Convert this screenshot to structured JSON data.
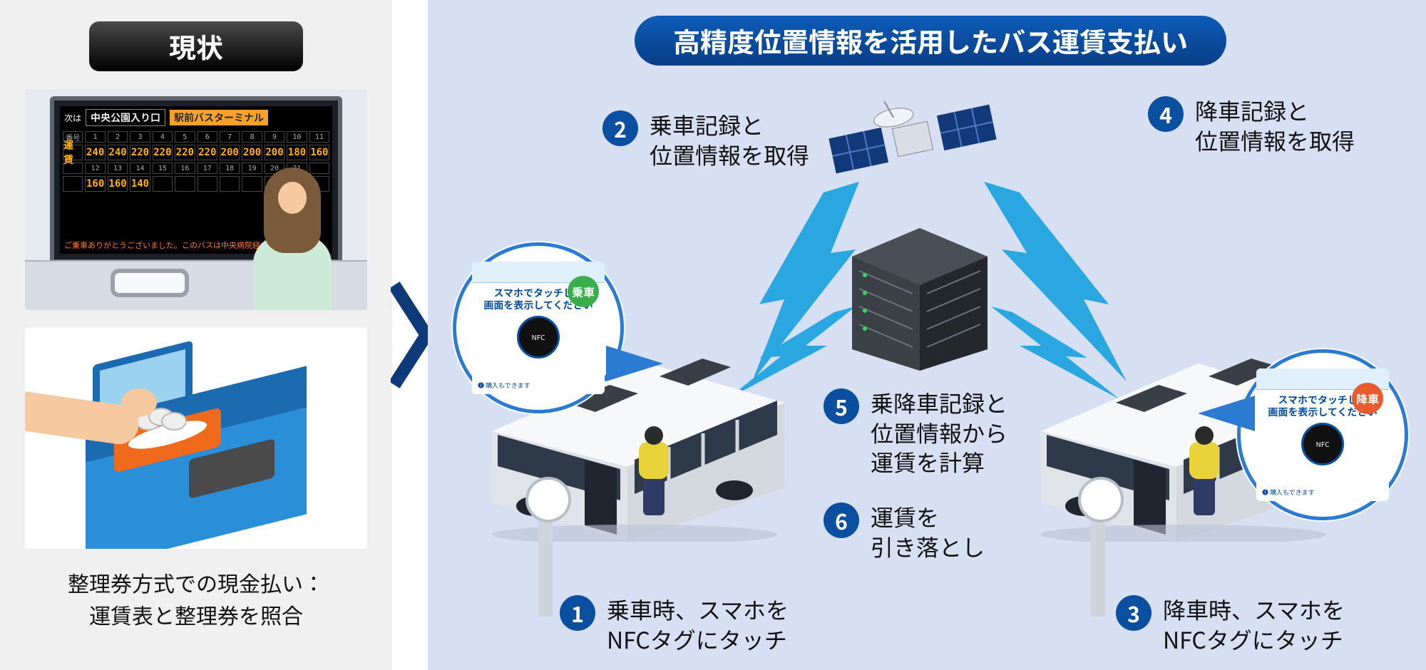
{
  "left": {
    "title": "現状",
    "fareBoard": {
      "nextLabel": "次は",
      "stop1": "中央公園入り口",
      "stop2": "駅前バスターミナル",
      "headerNums1": [
        "番号",
        "1",
        "2",
        "3",
        "4",
        "5",
        "6",
        "7",
        "8",
        "9",
        "10",
        "11"
      ],
      "prices1": [
        "運賃",
        "240",
        "240",
        "220",
        "220",
        "220",
        "220",
        "200",
        "200",
        "200",
        "180",
        "160"
      ],
      "headerNums2": [
        "",
        "12",
        "13",
        "14",
        "15",
        "16",
        "17",
        "18",
        "19",
        "20",
        "21",
        ""
      ],
      "prices2": [
        "",
        "160",
        "160",
        "140",
        "",
        "",
        "",
        "",
        "",
        "",
        "",
        ""
      ],
      "scroll": "ご乗車ありがとうございました。このバスは中央病院経由、駅前…"
    },
    "caption": "整理券方式での現金払い：\n運賃表と整理券を照合"
  },
  "right": {
    "banner": "高精度位置情報を活用したバス運賃支払い",
    "steps": {
      "s1": "乗車時、スマホを\nNFCタグにタッチ",
      "s2": "乗車記録と\n位置情報を取得",
      "s3": "降車時、スマホを\nNFCタグにタッチ",
      "s4": "降車記録と\n位置情報を取得",
      "s5": "乗降車記録と\n位置情報から\n運賃を計算",
      "s6": "運賃を\n引き落とし"
    },
    "poster": {
      "line1": "スマホでタッチして",
      "line2": "画面を表示してください",
      "buy": "❶ 購入もできます",
      "badgeBoard": "乗車",
      "badgeAlight": "降車"
    }
  },
  "colors": {
    "leftBg": "#f0f0f0",
    "rightBg": "#d7dff3",
    "accent": "#0a4fa0",
    "bannerTop": "#0e5bb8",
    "bannerBot": "#093e87",
    "zap": "#2aa7e0",
    "ledPrice": "#ffb400",
    "badgeBoard": "#3aae4a",
    "badgeAlight": "#e95b2e"
  }
}
